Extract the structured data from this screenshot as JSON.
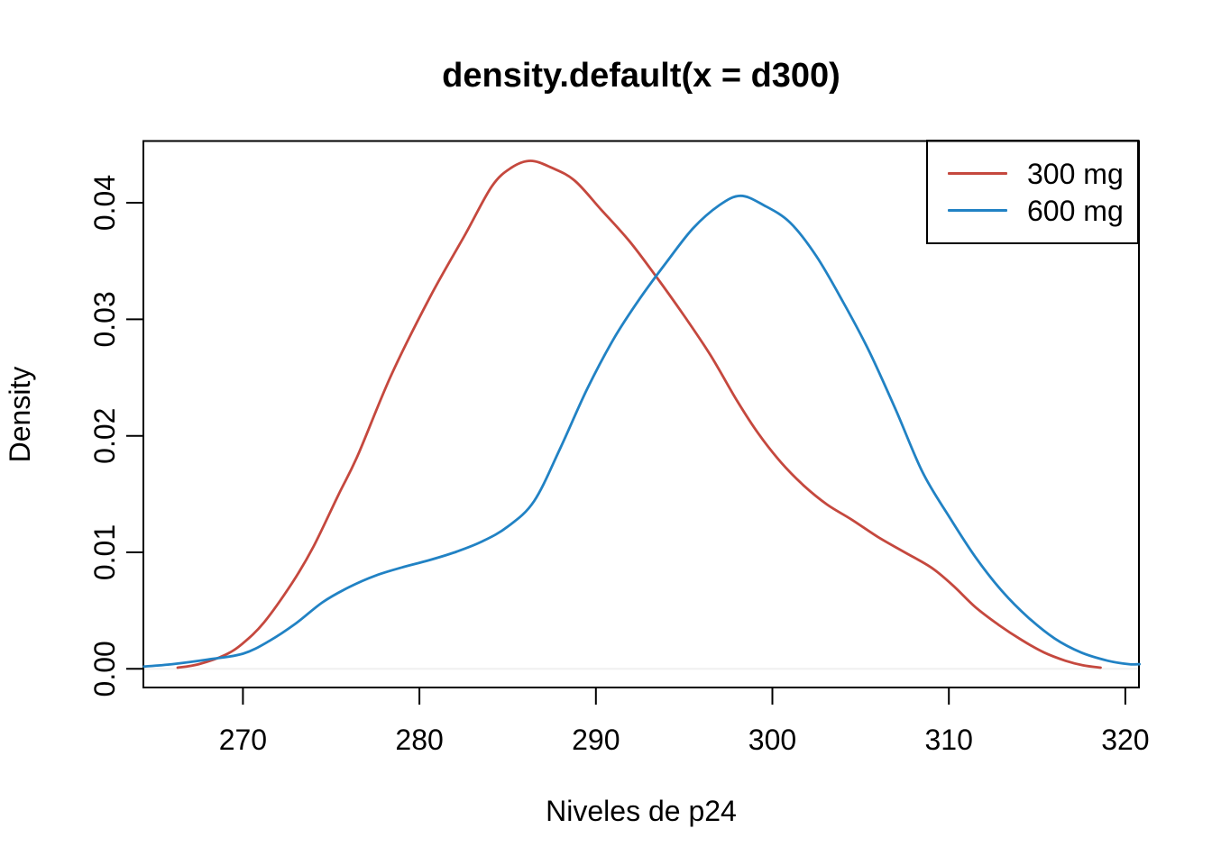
{
  "chart_data": {
    "type": "line",
    "title": "density.default(x = d300)",
    "xlabel": "Niveles de p24",
    "ylabel": "Density",
    "xlim": [
      264.36,
      320.77
    ],
    "ylim": [
      -0.0016,
      0.0453
    ],
    "x_ticks": [
      270,
      280,
      290,
      300,
      310,
      320
    ],
    "y_ticks": [
      {
        "value": 0.0,
        "label": "0.00"
      },
      {
        "value": 0.01,
        "label": "0.01"
      },
      {
        "value": 0.02,
        "label": "0.02"
      },
      {
        "value": 0.03,
        "label": "0.03"
      },
      {
        "value": 0.04,
        "label": "0.04"
      }
    ],
    "grid": false,
    "legend_position": "topright",
    "zero_line": {
      "y": 0,
      "color": "#f0f0f0"
    },
    "axis_color": "#000000",
    "background": "#ffffff",
    "series": [
      {
        "name": "300 mg",
        "color": "#c5483e",
        "peak": {
          "x": 286.3,
          "y": 0.0436
        },
        "points": [
          [
            266.3,
            0.0001
          ],
          [
            267.5,
            0.0004
          ],
          [
            269.0,
            0.0012
          ],
          [
            270.0,
            0.0022
          ],
          [
            271.2,
            0.004
          ],
          [
            272.8,
            0.0074
          ],
          [
            274.0,
            0.0105
          ],
          [
            275.4,
            0.0149
          ],
          [
            276.5,
            0.0183
          ],
          [
            278.4,
            0.0252
          ],
          [
            280.6,
            0.0319
          ],
          [
            282.6,
            0.0373
          ],
          [
            284.1,
            0.0414
          ],
          [
            285.2,
            0.043
          ],
          [
            286.3,
            0.0436
          ],
          [
            287.5,
            0.043
          ],
          [
            288.8,
            0.0419
          ],
          [
            290.3,
            0.0394
          ],
          [
            291.9,
            0.0367
          ],
          [
            293.4,
            0.0337
          ],
          [
            295.0,
            0.0303
          ],
          [
            296.5,
            0.0269
          ],
          [
            298.0,
            0.023
          ],
          [
            299.2,
            0.0202
          ],
          [
            300.5,
            0.0177
          ],
          [
            301.8,
            0.0157
          ],
          [
            303.1,
            0.0141
          ],
          [
            304.5,
            0.0128
          ],
          [
            306.0,
            0.0113
          ],
          [
            307.5,
            0.01
          ],
          [
            309.0,
            0.0087
          ],
          [
            310.2,
            0.0072
          ],
          [
            311.5,
            0.0053
          ],
          [
            312.8,
            0.0038
          ],
          [
            314.1,
            0.0025
          ],
          [
            315.4,
            0.0014
          ],
          [
            316.6,
            0.0007
          ],
          [
            317.6,
            0.0003
          ],
          [
            318.6,
            0.0001
          ]
        ]
      },
      {
        "name": "600 mg",
        "color": "#2182c4",
        "peak": {
          "x": 298.2,
          "y": 0.0406
        },
        "points": [
          [
            264.4,
            0.0002
          ],
          [
            266.0,
            0.0004
          ],
          [
            268.0,
            0.0008
          ],
          [
            270.0,
            0.0013
          ],
          [
            271.5,
            0.0024
          ],
          [
            273.0,
            0.0039
          ],
          [
            274.5,
            0.0057
          ],
          [
            276.0,
            0.007
          ],
          [
            277.5,
            0.008
          ],
          [
            279.0,
            0.0087
          ],
          [
            280.5,
            0.0093
          ],
          [
            282.0,
            0.01
          ],
          [
            283.5,
            0.0109
          ],
          [
            285.0,
            0.0122
          ],
          [
            286.5,
            0.0144
          ],
          [
            288.0,
            0.019
          ],
          [
            289.5,
            0.024
          ],
          [
            291.0,
            0.0283
          ],
          [
            292.5,
            0.0318
          ],
          [
            294.0,
            0.0349
          ],
          [
            295.5,
            0.0378
          ],
          [
            297.0,
            0.0398
          ],
          [
            298.2,
            0.0406
          ],
          [
            299.5,
            0.0398
          ],
          [
            301.0,
            0.0383
          ],
          [
            302.5,
            0.0354
          ],
          [
            304.0,
            0.0315
          ],
          [
            305.5,
            0.0272
          ],
          [
            307.0,
            0.0222
          ],
          [
            308.5,
            0.0169
          ],
          [
            310.0,
            0.0131
          ],
          [
            311.5,
            0.0096
          ],
          [
            313.0,
            0.0067
          ],
          [
            314.5,
            0.0044
          ],
          [
            316.0,
            0.0026
          ],
          [
            317.5,
            0.0014
          ],
          [
            319.0,
            0.0007
          ],
          [
            320.2,
            0.0004
          ],
          [
            320.8,
            0.0004
          ]
        ]
      }
    ]
  }
}
